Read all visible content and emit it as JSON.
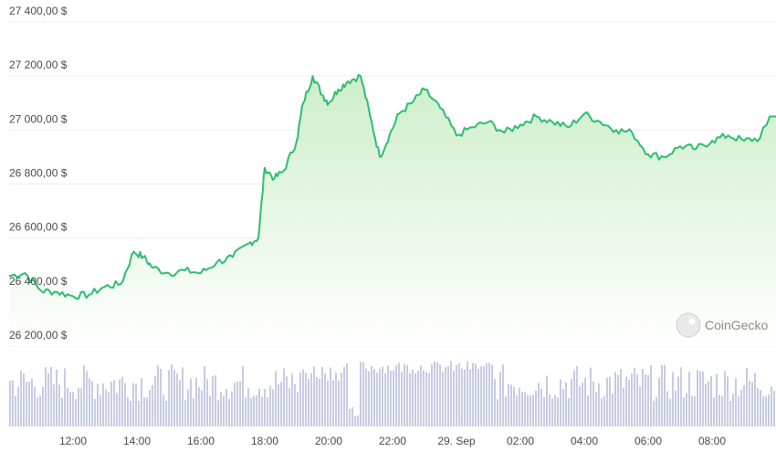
{
  "chart_data": {
    "type": "area",
    "yaxis": {
      "ticks": [
        26200,
        26400,
        26600,
        26800,
        27000,
        27200,
        27400
      ],
      "tick_labels": [
        "26 200,00 $",
        "26 400,00 $",
        "26 600,00 $",
        "26 800,00 $",
        "27 000,00 $",
        "27 200,00 $",
        "27 400,00 $"
      ]
    },
    "xaxis": {
      "tick_labels": [
        "12:00",
        "14:00",
        "16:00",
        "18:00",
        "20:00",
        "22:00",
        "29. Sep",
        "02:00",
        "04:00",
        "06:00",
        "08:00"
      ],
      "tick_hours": [
        12,
        14,
        16,
        18,
        20,
        22,
        24,
        26,
        28,
        30,
        32
      ]
    },
    "series": [
      {
        "x": [
          10.0,
          10.5,
          11.0,
          11.5,
          12.0,
          12.5,
          13.0,
          13.5,
          13.9,
          14.2,
          14.5,
          15.0,
          15.5,
          16.0,
          16.5,
          17.0,
          17.5,
          17.8,
          18.0,
          18.3,
          18.6,
          19.0,
          19.2,
          19.5,
          19.8,
          20.0,
          20.3,
          20.6,
          21.0,
          21.3,
          21.6,
          21.9,
          22.2,
          22.6,
          23.0,
          23.5,
          24.0,
          24.5,
          25.0,
          25.5,
          26.0,
          26.5,
          27.0,
          27.5,
          28.0,
          28.5,
          29.0,
          29.5,
          30.0,
          30.5,
          31.0,
          31.5,
          32.0,
          32.5,
          33.0,
          33.5,
          33.8
        ],
        "values": [
          26460,
          26470,
          26405,
          26400,
          26385,
          26390,
          26420,
          26430,
          26550,
          26530,
          26490,
          26470,
          26480,
          26470,
          26510,
          26530,
          26580,
          26600,
          26860,
          26820,
          26850,
          26960,
          27100,
          27200,
          27130,
          27100,
          27150,
          27180,
          27200,
          27050,
          26900,
          26980,
          27060,
          27100,
          27150,
          27080,
          26980,
          27010,
          27030,
          26990,
          27020,
          27050,
          27030,
          27010,
          27060,
          27030,
          27000,
          26990,
          26910,
          26900,
          26940,
          26930,
          26960,
          26980,
          26960,
          26970,
          27050
        ]
      }
    ],
    "volume_note": "volume bars shown at bottom"
  },
  "watermark": {
    "text": "CoinGecko"
  },
  "colors": {
    "line": "#2dbd72",
    "area_top": "#d7f2d4",
    "area_bottom": "#ffffff",
    "volume": "#c7cbe0",
    "grid": "#ebedf2"
  }
}
